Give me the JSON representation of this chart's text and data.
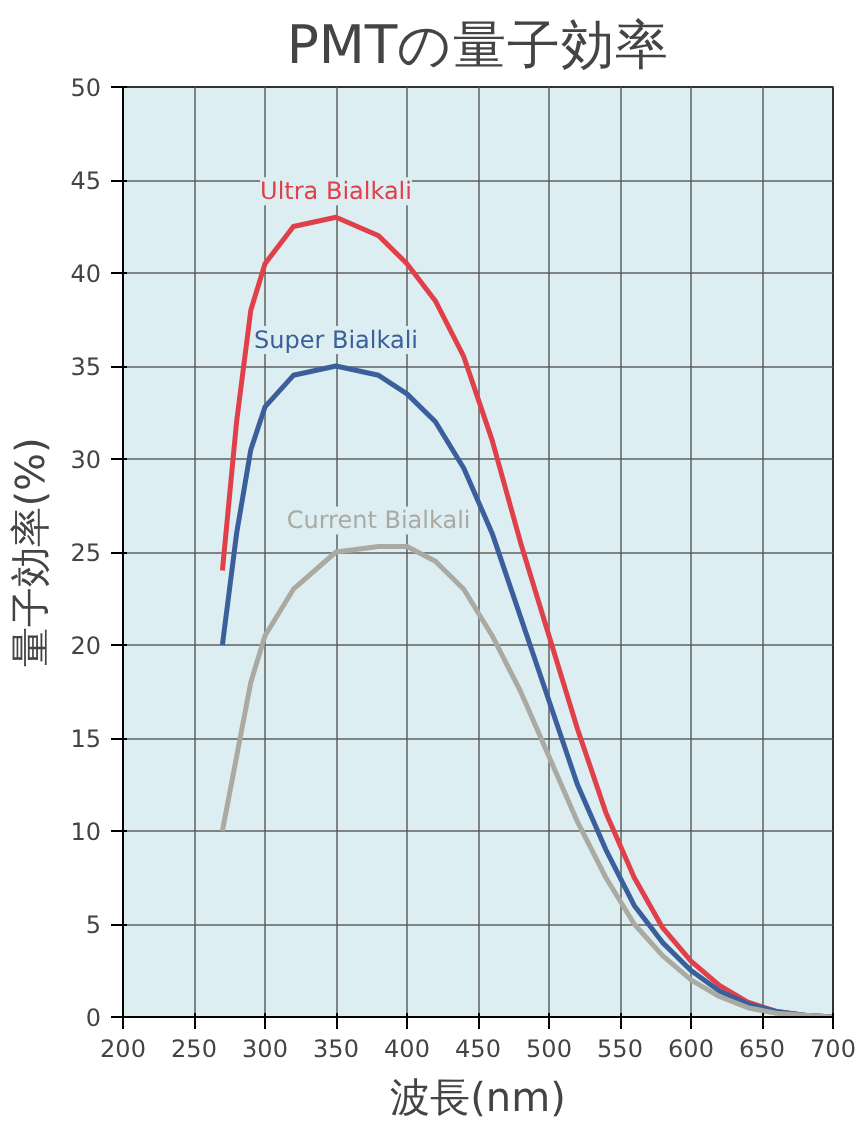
{
  "chart_data": {
    "type": "line",
    "title": "PMTの量子効率",
    "xlabel": "波長(nm)",
    "ylabel": "量子効率(%)",
    "x": [
      270,
      280,
      290,
      300,
      320,
      350,
      380,
      400,
      420,
      440,
      460,
      480,
      500,
      520,
      540,
      560,
      580,
      600,
      620,
      640,
      660,
      680,
      700
    ],
    "series": [
      {
        "name": "Ultra Bialkali",
        "color": "#e0404a",
        "values": [
          24,
          32,
          38,
          40.5,
          42.5,
          43,
          42,
          40.5,
          38.5,
          35.5,
          31,
          25.5,
          20.5,
          15.5,
          11,
          7.5,
          4.8,
          3,
          1.7,
          0.8,
          0.3,
          0.1,
          0
        ]
      },
      {
        "name": "Super Bialkali",
        "color": "#3a5f9a",
        "values": [
          20,
          26,
          30.5,
          32.8,
          34.5,
          35,
          34.5,
          33.5,
          32,
          29.5,
          26,
          21.5,
          17,
          12.5,
          9,
          6,
          4,
          2.5,
          1.4,
          0.7,
          0.3,
          0.1,
          0
        ]
      },
      {
        "name": "Current Bialkali",
        "color": "#aaaaa2",
        "values": [
          10,
          14,
          18,
          20.5,
          23,
          25,
          25.3,
          25.3,
          24.5,
          23,
          20.5,
          17.5,
          14,
          10.5,
          7.5,
          5,
          3.3,
          2,
          1.1,
          0.5,
          0.2,
          0.1,
          0
        ]
      }
    ],
    "xlim": [
      200,
      700
    ],
    "ylim": [
      0,
      50
    ],
    "xticks": [
      200,
      250,
      300,
      350,
      400,
      450,
      500,
      550,
      600,
      650,
      700
    ],
    "yticks": [
      0,
      5,
      10,
      15,
      20,
      25,
      30,
      35,
      40,
      45,
      50
    ],
    "grid": true,
    "line_style": "solid",
    "marker": "none"
  }
}
